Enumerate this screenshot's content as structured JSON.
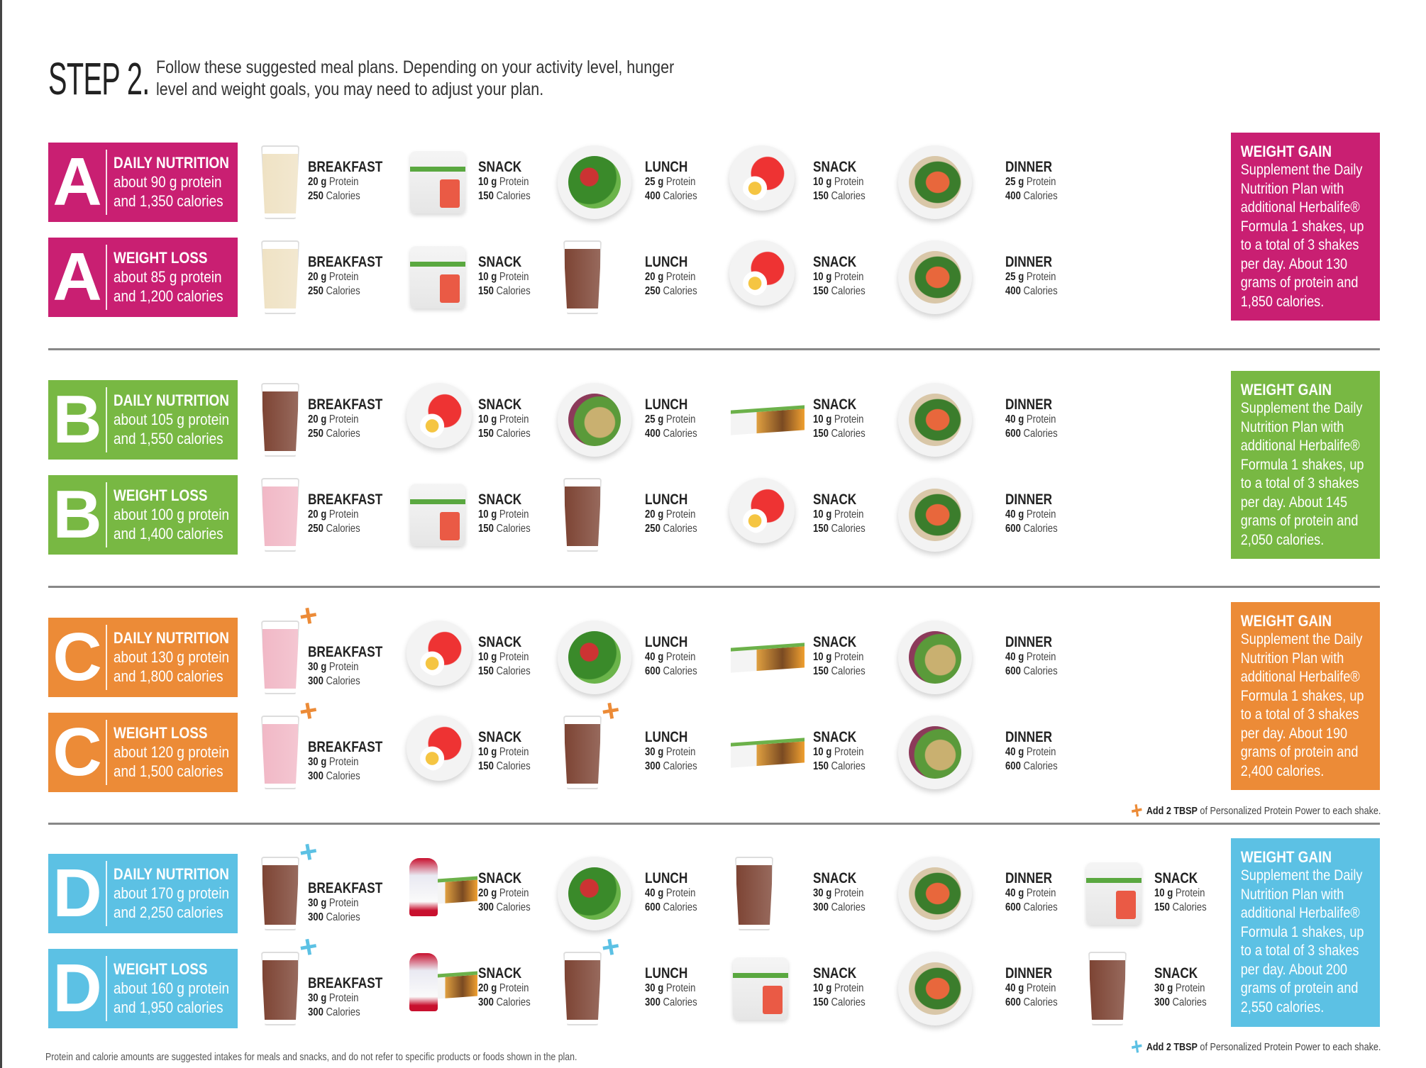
{
  "header": {
    "step": "STEP 2.",
    "intro": "Follow these suggested meal plans. Depending on your activity level, hunger level and weight goals, you may need to adjust your plan."
  },
  "plans": [
    {
      "letter": "A",
      "color": "#c91f72",
      "rows": [
        {
          "title": "DAILY NUTRITION",
          "protein": "about 90 g protein",
          "calories": "and 1,350 calories",
          "meals": [
            {
              "label": "BREAKFAST",
              "protein": "20 g",
              "calories": "250",
              "image": "vanilla-shake"
            },
            {
              "label": "SNACK",
              "protein": "10 g",
              "calories": "150",
              "image": "beverage-mix-canister"
            },
            {
              "label": "LUNCH",
              "protein": "25 g",
              "calories": "400",
              "image": "chicken-salad"
            },
            {
              "label": "SNACK",
              "protein": "10 g",
              "calories": "150",
              "image": "tomato-egg-plate"
            },
            {
              "label": "DINNER",
              "protein": "25 g",
              "calories": "400",
              "image": "salmon-plate"
            }
          ]
        },
        {
          "title": "WEIGHT LOSS",
          "protein": "about 85 g protein",
          "calories": "and 1,200 calories",
          "meals": [
            {
              "label": "BREAKFAST",
              "protein": "20 g",
              "calories": "250",
              "image": "vanilla-shake"
            },
            {
              "label": "SNACK",
              "protein": "10 g",
              "calories": "150",
              "image": "beverage-mix-canister"
            },
            {
              "label": "LUNCH",
              "protein": "20 g",
              "calories": "250",
              "image": "chocolate-shake"
            },
            {
              "label": "SNACK",
              "protein": "10 g",
              "calories": "150",
              "image": "tomato-egg-plate"
            },
            {
              "label": "DINNER",
              "protein": "25 g",
              "calories": "400",
              "image": "salmon-plate"
            }
          ]
        }
      ],
      "gain": {
        "title": "WEIGHT GAIN",
        "body": "Supplement the Daily Nutrition Plan with additional Herbalife® Formula 1 shakes, up to a total of 3 shakes per day. About 130 grams of protein and 1,850 calories."
      }
    },
    {
      "letter": "B",
      "color": "#78b843",
      "rows": [
        {
          "title": "DAILY NUTRITION",
          "protein": "about 105 g protein",
          "calories": "and 1,550 calories",
          "meals": [
            {
              "label": "BREAKFAST",
              "protein": "20 g",
              "calories": "250",
              "image": "chocolate-shake"
            },
            {
              "label": "SNACK",
              "protein": "10 g",
              "calories": "150",
              "image": "tomato-egg-plate"
            },
            {
              "label": "LUNCH",
              "protein": "25 g",
              "calories": "400",
              "image": "grain-salad"
            },
            {
              "label": "SNACK",
              "protein": "10 g",
              "calories": "150",
              "image": "protein-bar"
            },
            {
              "label": "DINNER",
              "protein": "40 g",
              "calories": "600",
              "image": "salmon-plate"
            }
          ]
        },
        {
          "title": "WEIGHT LOSS",
          "protein": "about 100 g protein",
          "calories": "and 1,400 calories",
          "meals": [
            {
              "label": "BREAKFAST",
              "protein": "20 g",
              "calories": "250",
              "image": "strawberry-shake"
            },
            {
              "label": "SNACK",
              "protein": "10 g",
              "calories": "150",
              "image": "beverage-mix-canister"
            },
            {
              "label": "LUNCH",
              "protein": "20 g",
              "calories": "250",
              "image": "chocolate-shake"
            },
            {
              "label": "SNACK",
              "protein": "10 g",
              "calories": "150",
              "image": "tomato-egg-plate"
            },
            {
              "label": "DINNER",
              "protein": "40 g",
              "calories": "600",
              "image": "salmon-plate"
            }
          ]
        }
      ],
      "gain": {
        "title": "WEIGHT GAIN",
        "body": "Supplement the Daily Nutrition Plan with additional Herbalife® Formula 1 shakes, up to a total of 3 shakes per day. About 145 grams of protein and 2,050 calories."
      }
    },
    {
      "letter": "C",
      "color": "#ec8b37",
      "rows": [
        {
          "title": "DAILY NUTRITION",
          "protein": "about 130 g protein",
          "calories": "and 1,800 calories",
          "meals": [
            {
              "label": "BREAKFAST",
              "protein": "30 g",
              "calories": "300",
              "image": "strawberry-shake",
              "plus": true
            },
            {
              "label": "SNACK",
              "protein": "10 g",
              "calories": "150",
              "image": "tomato-egg-plate"
            },
            {
              "label": "LUNCH",
              "protein": "40 g",
              "calories": "600",
              "image": "chicken-salad"
            },
            {
              "label": "SNACK",
              "protein": "10 g",
              "calories": "150",
              "image": "protein-bar"
            },
            {
              "label": "DINNER",
              "protein": "40 g",
              "calories": "600",
              "image": "grain-salad"
            }
          ]
        },
        {
          "title": "WEIGHT LOSS",
          "protein": "about 120 g protein",
          "calories": "and 1,500 calories",
          "meals": [
            {
              "label": "BREAKFAST",
              "protein": "30 g",
              "calories": "300",
              "image": "strawberry-shake",
              "plus": true
            },
            {
              "label": "SNACK",
              "protein": "10 g",
              "calories": "150",
              "image": "tomato-egg-plate"
            },
            {
              "label": "LUNCH",
              "protein": "30 g",
              "calories": "300",
              "image": "chocolate-shake",
              "plus": true
            },
            {
              "label": "SNACK",
              "protein": "10 g",
              "calories": "150",
              "image": "protein-bar"
            },
            {
              "label": "DINNER",
              "protein": "40 g",
              "calories": "600",
              "image": "grain-salad"
            }
          ]
        }
      ],
      "gain": {
        "title": "WEIGHT GAIN",
        "body": "Supplement the Daily Nutrition Plan with additional Herbalife® Formula 1 shakes, up to a total of 3 shakes per day. About 190 grams of protein and 2,400 calories."
      },
      "note": {
        "bold": "Add 2 TBSP",
        "rest": " of Personalized Protein Power to each shake."
      }
    },
    {
      "letter": "D",
      "color": "#5cc1e4",
      "rows": [
        {
          "title": "DAILY NUTRITION",
          "protein": "about 170 g protein",
          "calories": "and 2,250 calories",
          "meals": [
            {
              "label": "BREAKFAST",
              "protein": "30 g",
              "calories": "300",
              "image": "chocolate-shake",
              "plus": true
            },
            {
              "label": "SNACK",
              "protein": "20 g",
              "calories": "300",
              "image": "parfait-and-bar"
            },
            {
              "label": "LUNCH",
              "protein": "40 g",
              "calories": "600",
              "image": "chicken-salad"
            },
            {
              "label": "SNACK",
              "protein": "30 g",
              "calories": "300",
              "image": "chocolate-shake"
            },
            {
              "label": "DINNER",
              "protein": "40 g",
              "calories": "600",
              "image": "salmon-plate"
            },
            {
              "label": "SNACK",
              "protein": "10 g",
              "calories": "150",
              "image": "beverage-mix-canister"
            }
          ]
        },
        {
          "title": "WEIGHT LOSS",
          "protein": "about 160 g protein",
          "calories": "and 1,950 calories",
          "meals": [
            {
              "label": "BREAKFAST",
              "protein": "30 g",
              "calories": "300",
              "image": "chocolate-shake",
              "plus": true
            },
            {
              "label": "SNACK",
              "protein": "20 g",
              "calories": "300",
              "image": "parfait-and-bar"
            },
            {
              "label": "LUNCH",
              "protein": "30 g",
              "calories": "300",
              "image": "chocolate-shake",
              "plus": true
            },
            {
              "label": "SNACK",
              "protein": "10 g",
              "calories": "150",
              "image": "beverage-mix-canister"
            },
            {
              "label": "DINNER",
              "protein": "40 g",
              "calories": "600",
              "image": "salmon-plate"
            },
            {
              "label": "SNACK",
              "protein": "30 g",
              "calories": "300",
              "image": "chocolate-shake"
            }
          ]
        }
      ],
      "gain": {
        "title": "WEIGHT GAIN",
        "body": "Supplement the Daily Nutrition Plan with additional Herbalife® Formula 1 shakes, up to a total of 3 shakes per day. About 200 grams of protein and 2,550 calories."
      },
      "note": {
        "bold": "Add 2 TBSP",
        "rest": " of Personalized Protein Power to each shake."
      }
    }
  ],
  "units": {
    "protein": " Protein",
    "calories": " Calories"
  },
  "footnote": "Protein and calorie amounts are suggested intakes for meals and snacks, and do not refer to specific products or foods shown in the plan."
}
